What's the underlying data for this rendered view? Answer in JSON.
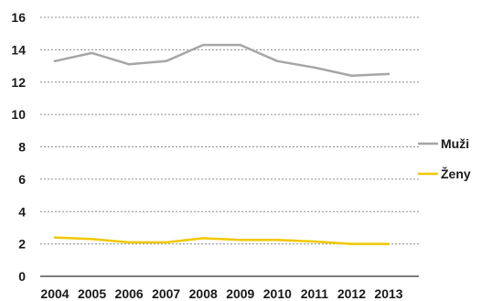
{
  "chart_data": {
    "type": "line",
    "x": [
      "2004",
      "2005",
      "2006",
      "2007",
      "2008",
      "2009",
      "2010",
      "2011",
      "2012",
      "2013"
    ],
    "series": [
      {
        "name": "Muži",
        "color": "#a6a6a6",
        "values": [
          13.3,
          13.8,
          13.1,
          13.3,
          14.3,
          14.3,
          13.3,
          12.9,
          12.4,
          12.5
        ]
      },
      {
        "name": "Ženy",
        "color": "#f0c800",
        "values": [
          2.4,
          2.3,
          2.1,
          2.1,
          2.35,
          2.25,
          2.25,
          2.15,
          2.0,
          2.0
        ]
      }
    ],
    "y_ticks": [
      "0",
      "2",
      "4",
      "6",
      "8",
      "10",
      "12",
      "14",
      "16"
    ],
    "ylim": [
      0,
      16
    ],
    "grid": "horizontal dashed",
    "legend_position": "right"
  }
}
